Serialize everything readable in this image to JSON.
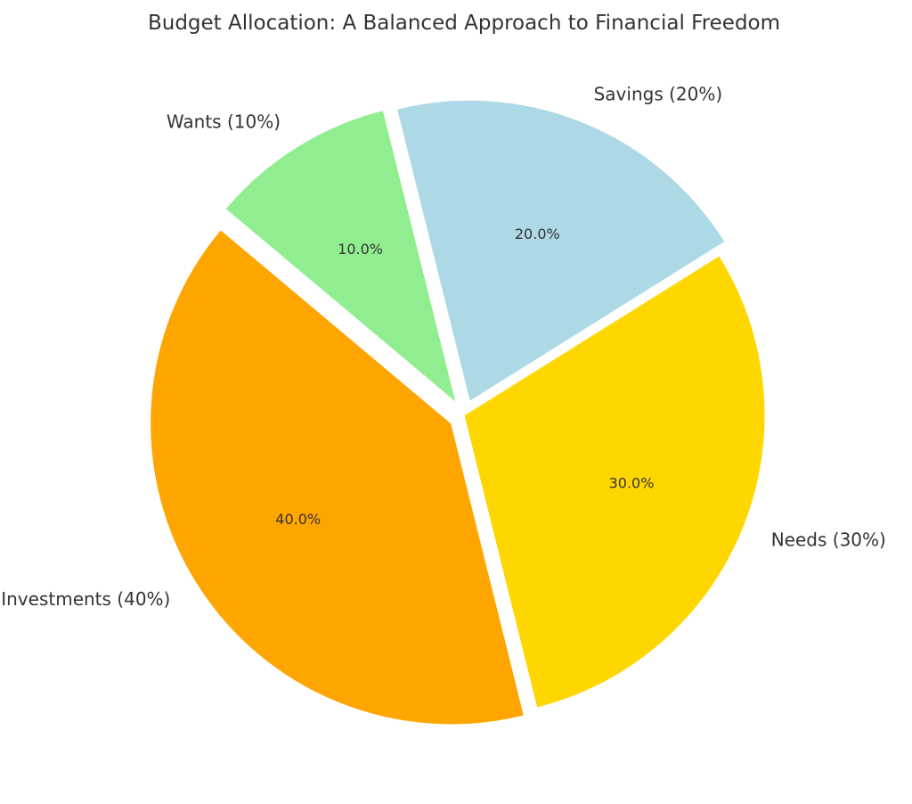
{
  "chart_data": {
    "type": "pie",
    "title": "Budget Allocation: A Balanced Approach to Financial Freedom",
    "slices": [
      {
        "label": "Investments (40%)",
        "value": 40,
        "pct_label": "40.0%",
        "color": "#FFA500",
        "exploded": true
      },
      {
        "label": "Needs (30%)",
        "value": 30,
        "pct_label": "30.0%",
        "color": "#FFD700",
        "exploded": false
      },
      {
        "label": "Savings (20%)",
        "value": 20,
        "pct_label": "20.0%",
        "color": "#ADD8E6",
        "exploded": true
      },
      {
        "label": "Wants (10%)",
        "value": 10,
        "pct_label": "10.0%",
        "color": "#90EE90",
        "exploded": true
      }
    ],
    "start_angle_deg": 140,
    "direction": "counterclockwise",
    "legend": "none"
  }
}
